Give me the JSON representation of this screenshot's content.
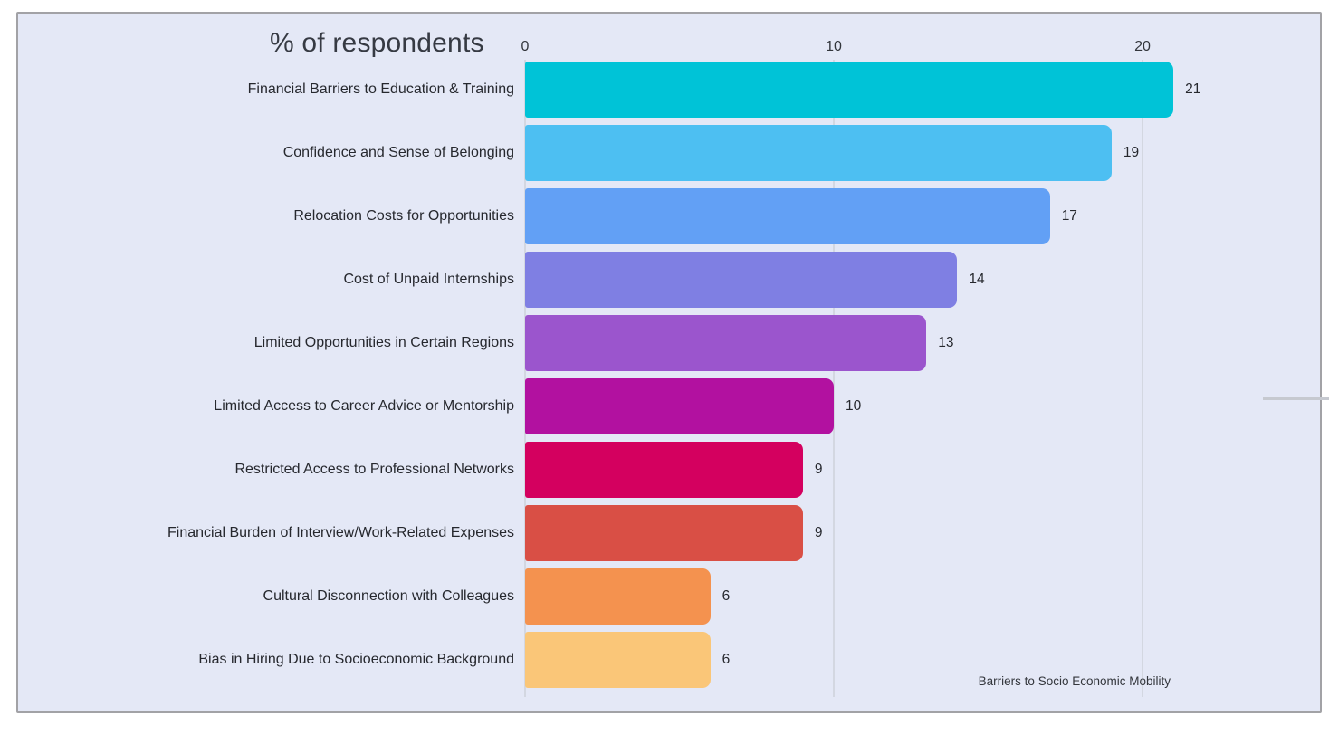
{
  "slide": {
    "background_color": "#e4e8f6",
    "border_color": "#a2a2a6"
  },
  "chart_data": {
    "type": "bar",
    "orientation": "horizontal",
    "title": "% of respondents",
    "footer": "Barriers to Socio Economic Mobility",
    "categories": [
      "Financial Barriers to Education & Training",
      "Confidence and Sense of Belonging",
      "Relocation Costs for Opportunities",
      "Cost of Unpaid Internships",
      "Limited Opportunities in Certain Regions",
      "Limited Access to Career Advice or Mentorship",
      "Restricted Access to Professional Networks",
      "Financial Burden of Interview/Work-Related Expenses",
      "Cultural Disconnection with Colleagues",
      "Bias in Hiring Due to Socioeconomic Background"
    ],
    "values": [
      21,
      19,
      17,
      14,
      13,
      10,
      9,
      9,
      6,
      6
    ],
    "bar_colors": [
      "#00c3d7",
      "#4dbff2",
      "#62a0f5",
      "#7f7fe3",
      "#9b55cd",
      "#b211a0",
      "#d4005f",
      "#d94f45",
      "#f4924f",
      "#fac678"
    ],
    "x_ticks": [
      0,
      10,
      20
    ],
    "xlim": [
      0,
      25.7
    ],
    "grid": "vertical",
    "value_label_position": "outside-end",
    "text_color": "#26282e",
    "grid_color": "#d3d7e1"
  }
}
